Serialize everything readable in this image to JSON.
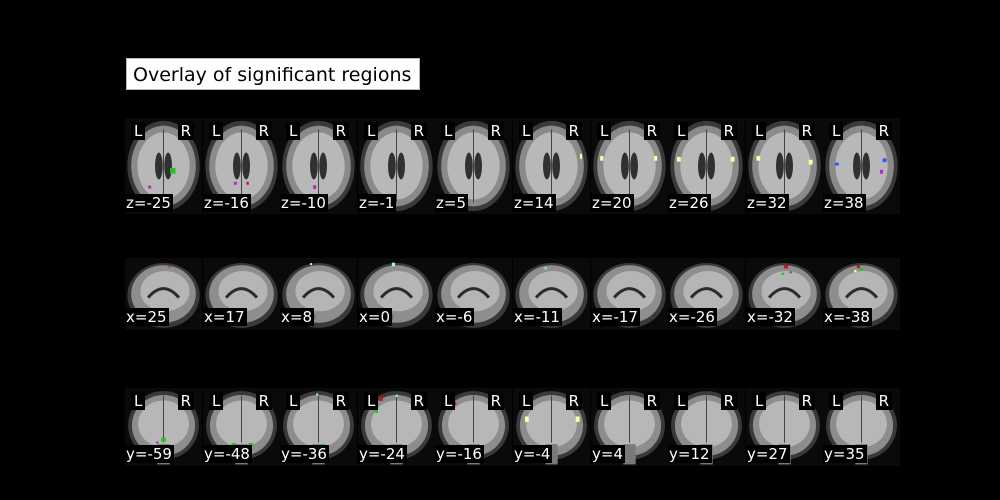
{
  "title": "Overlay of significant regions",
  "orientation": {
    "left": "L",
    "right": "R"
  },
  "rows": [
    {
      "view": "axial",
      "show_orientation": true,
      "cuts": [
        {
          "label": "z=-25",
          "blobs": [
            [
              "#22c322",
              0.62,
              0.55,
              0.07,
              0.06
            ],
            [
              "#c025c0",
              0.32,
              0.72,
              0.04,
              0.03
            ]
          ]
        },
        {
          "label": "z=-16",
          "blobs": [
            [
              "#c025c0",
              0.42,
              0.68,
              0.04,
              0.03
            ],
            [
              "#c01818",
              0.58,
              0.68,
              0.03,
              0.03
            ]
          ]
        },
        {
          "label": "z=-10",
          "blobs": [
            [
              "#c025c0",
              0.45,
              0.72,
              0.04,
              0.04
            ]
          ]
        },
        {
          "label": "z=-1",
          "blobs": []
        },
        {
          "label": "z=5",
          "blobs": []
        },
        {
          "label": "z=14",
          "blobs": [
            [
              "#ffffaa",
              0.88,
              0.4,
              0.02,
              0.05
            ]
          ]
        },
        {
          "label": "z=20",
          "blobs": [
            [
              "#ffffaa",
              0.14,
              0.42,
              0.04,
              0.05
            ],
            [
              "#ffffaa",
              0.84,
              0.42,
              0.04,
              0.05
            ]
          ]
        },
        {
          "label": "z=26",
          "blobs": [
            [
              "#ffffaa",
              0.14,
              0.43,
              0.05,
              0.05
            ],
            [
              "#ffffaa",
              0.84,
              0.43,
              0.05,
              0.05
            ]
          ]
        },
        {
          "label": "z=32",
          "blobs": [
            [
              "#ffffaa",
              0.16,
              0.42,
              0.05,
              0.05
            ],
            [
              "#ffffaa",
              0.84,
              0.46,
              0.05,
              0.05
            ]
          ]
        },
        {
          "label": "z=38",
          "blobs": [
            [
              "#3355ff",
              0.18,
              0.48,
              0.05,
              0.03
            ],
            [
              "#3355ff",
              0.8,
              0.44,
              0.05,
              0.04
            ],
            [
              "#c025c0",
              0.76,
              0.56,
              0.04,
              0.04
            ]
          ]
        }
      ]
    },
    {
      "view": "sagittal",
      "show_orientation": false,
      "cuts": [
        {
          "label": "x=25",
          "blobs": [
            [
              "#c025c0",
              0.58,
              0.12,
              0.03,
              0.03
            ]
          ]
        },
        {
          "label": "x=17",
          "blobs": [
            [
              "#22c322",
              0.36,
              0.78,
              0.05,
              0.03
            ]
          ]
        },
        {
          "label": "x=8",
          "blobs": [
            [
              "#22c322",
              0.3,
              0.76,
              0.05,
              0.04
            ],
            [
              "#88ffff",
              0.4,
              0.08,
              0.02,
              0.02
            ]
          ]
        },
        {
          "label": "x=0",
          "blobs": [
            [
              "#88ffff",
              0.46,
              0.09,
              0.04,
              0.05
            ],
            [
              "#22c322",
              0.3,
              0.76,
              0.05,
              0.04
            ]
          ]
        },
        {
          "label": "x=-6",
          "blobs": [
            [
              "#c025c0",
              0.28,
              0.74,
              0.05,
              0.04
            ]
          ]
        },
        {
          "label": "x=-11",
          "blobs": [
            [
              "#c025c0",
              0.28,
              0.74,
              0.04,
              0.03
            ],
            [
              "#88ffff",
              0.42,
              0.14,
              0.02,
              0.02
            ]
          ]
        },
        {
          "label": "x=-17",
          "blobs": [
            [
              "#c025c0",
              0.32,
              0.72,
              0.04,
              0.03
            ]
          ]
        },
        {
          "label": "x=-26",
          "blobs": []
        },
        {
          "label": "x=-32",
          "blobs": [
            [
              "#c01818",
              0.52,
              0.12,
              0.05,
              0.05
            ],
            [
              "#c025c0",
              0.58,
              0.2,
              0.03,
              0.03
            ],
            [
              "#22c322",
              0.48,
              0.22,
              0.03,
              0.03
            ]
          ]
        },
        {
          "label": "x=-38",
          "blobs": [
            [
              "#c01818",
              0.46,
              0.12,
              0.04,
              0.04
            ],
            [
              "#22c322",
              0.5,
              0.16,
              0.04,
              0.04
            ],
            [
              "#ffffaa",
              0.42,
              0.18,
              0.03,
              0.03
            ]
          ]
        }
      ]
    },
    {
      "view": "coronal",
      "show_orientation": true,
      "cuts": [
        {
          "label": "y=-59",
          "blobs": [
            [
              "#22c322",
              0.5,
              0.66,
              0.06,
              0.05
            ],
            [
              "#c025c0",
              0.42,
              0.7,
              0.03,
              0.03
            ]
          ]
        },
        {
          "label": "y=-48",
          "blobs": [
            [
              "#22c322",
              0.4,
              0.72,
              0.06,
              0.03
            ],
            [
              "#22c322",
              0.62,
              0.72,
              0.06,
              0.03
            ]
          ]
        },
        {
          "label": "y=-36",
          "blobs": [
            [
              "#22c322",
              0.56,
              0.74,
              0.06,
              0.04
            ],
            [
              "#88ffff",
              0.48,
              0.08,
              0.02,
              0.02
            ]
          ]
        },
        {
          "label": "y=-24",
          "blobs": [
            [
              "#c025c0",
              0.72,
              0.2,
              0.03,
              0.12
            ],
            [
              "#c01818",
              0.3,
              0.14,
              0.05,
              0.05
            ],
            [
              "#88ffff",
              0.5,
              0.1,
              0.02,
              0.03
            ],
            [
              "#22c322",
              0.24,
              0.3,
              0.04,
              0.04
            ]
          ]
        },
        {
          "label": "y=-16",
          "blobs": [
            [
              "#c025c0",
              0.76,
              0.18,
              0.03,
              0.1
            ],
            [
              "#c01818",
              0.26,
              0.2,
              0.03,
              0.04
            ]
          ]
        },
        {
          "label": "y=-4",
          "blobs": [
            [
              "#ffffaa",
              0.18,
              0.4,
              0.05,
              0.07
            ],
            [
              "#ffffaa",
              0.84,
              0.4,
              0.05,
              0.07
            ]
          ]
        },
        {
          "label": "y=4",
          "blobs": []
        },
        {
          "label": "y=12",
          "blobs": []
        },
        {
          "label": "y=27",
          "blobs": []
        },
        {
          "label": "y=35",
          "blobs": []
        }
      ]
    }
  ]
}
